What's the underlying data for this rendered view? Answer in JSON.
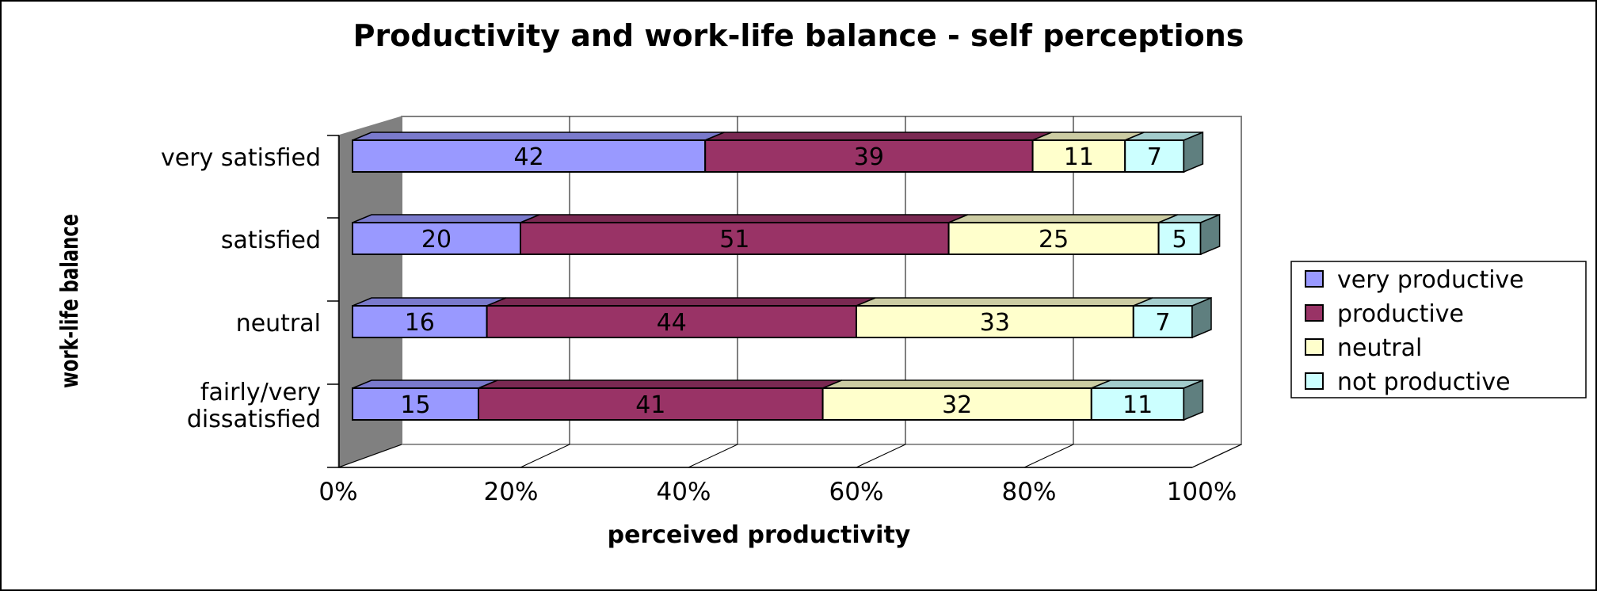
{
  "chart_data": {
    "type": "bar",
    "orientation": "horizontal",
    "stacked": "percent",
    "title": "Productivity and work-life balance - self perceptions",
    "xlabel": "perceived productivity",
    "ylabel": "work-life balance",
    "xlim": [
      0,
      100
    ],
    "x_ticks": [
      "0%",
      "20%",
      "40%",
      "60%",
      "80%",
      "100%"
    ],
    "grid": true,
    "legend_position": "right",
    "categories": [
      "very satisfied",
      "satisfied",
      "neutral",
      "fairly/very dissatisfied"
    ],
    "category_lines": [
      [
        "very satisfied"
      ],
      [
        "satisfied"
      ],
      [
        "neutral"
      ],
      [
        "fairly/very",
        "dissatisfied"
      ]
    ],
    "series": [
      {
        "name": "very productive",
        "color": "#9999ff",
        "values": [
          42,
          20,
          16,
          15
        ]
      },
      {
        "name": "productive",
        "color": "#993366",
        "values": [
          39,
          51,
          44,
          41
        ]
      },
      {
        "name": "neutral",
        "color": "#ffffcc",
        "values": [
          11,
          25,
          33,
          32
        ]
      },
      {
        "name": "not productive",
        "color": "#ccffff",
        "values": [
          7,
          5,
          7,
          11
        ]
      }
    ]
  }
}
